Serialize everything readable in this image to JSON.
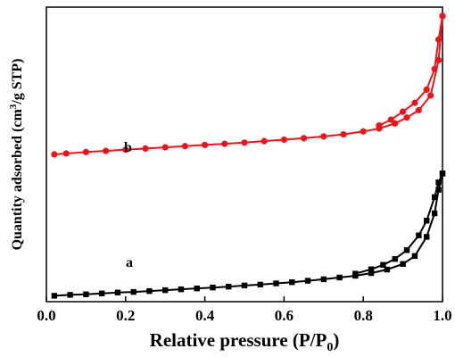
{
  "chart_data": {
    "type": "line",
    "title": "",
    "xlabel": "Relative pressure (P/P",
    "xlabel_sub": "0",
    "xlabel_end": ")",
    "ylabel_pre": "Quantity adsorbed (cm",
    "ylabel_sup": "3",
    "ylabel_post": "/g STP)",
    "xlim": [
      0.0,
      1.0
    ],
    "ylim": [
      0,
      100
    ],
    "y_ticks_shown": false,
    "grid": false,
    "x_ticks": [
      {
        "value": 0.0,
        "label": "0.0"
      },
      {
        "value": 0.2,
        "label": "0.2"
      },
      {
        "value": 0.4,
        "label": "0.4"
      },
      {
        "value": 0.6,
        "label": "0.6"
      },
      {
        "value": 0.8,
        "label": "0.8"
      },
      {
        "value": 1.0,
        "label": "1.0"
      }
    ],
    "series": [
      {
        "name": "a",
        "label": "a",
        "color": "#000000",
        "marker": "square",
        "adsorption": {
          "x": [
            0.02,
            0.06,
            0.1,
            0.14,
            0.18,
            0.22,
            0.26,
            0.3,
            0.34,
            0.38,
            0.42,
            0.46,
            0.5,
            0.54,
            0.58,
            0.62,
            0.66,
            0.7,
            0.74,
            0.78,
            0.82,
            0.86,
            0.9,
            0.93,
            0.96,
            0.98,
            0.99,
            1.0
          ],
          "y": [
            2.0,
            2.3,
            2.5,
            2.8,
            3.1,
            3.3,
            3.6,
            3.9,
            4.2,
            4.5,
            4.8,
            5.1,
            5.5,
            5.8,
            6.2,
            6.6,
            7.1,
            7.6,
            8.2,
            8.8,
            9.7,
            10.9,
            12.8,
            15.5,
            22.0,
            30.0,
            38.0,
            43.5
          ]
        },
        "desorption": {
          "x": [
            1.0,
            0.99,
            0.98,
            0.96,
            0.94,
            0.91,
            0.88,
            0.85,
            0.82,
            0.78
          ],
          "y": [
            43.5,
            40.5,
            35.5,
            27.5,
            22.5,
            17.5,
            14.5,
            12.5,
            11.0,
            9.5
          ]
        }
      },
      {
        "name": "b",
        "label": "b",
        "color": "#e8151b",
        "marker": "circle",
        "adsorption": {
          "x": [
            0.02,
            0.05,
            0.1,
            0.15,
            0.2,
            0.25,
            0.3,
            0.35,
            0.4,
            0.45,
            0.5,
            0.55,
            0.6,
            0.65,
            0.7,
            0.75,
            0.8,
            0.84,
            0.88,
            0.91,
            0.94,
            0.97,
            0.99,
            1.0
          ],
          "y": [
            50.0,
            50.3,
            50.8,
            51.2,
            51.6,
            52.0,
            52.4,
            52.8,
            53.2,
            53.6,
            54.0,
            54.5,
            55.0,
            55.5,
            56.1,
            56.8,
            57.8,
            58.8,
            60.5,
            62.5,
            65.0,
            70.0,
            82.0,
            97.0
          ]
        },
        "desorption": {
          "x": [
            1.0,
            0.99,
            0.98,
            0.96,
            0.93,
            0.9,
            0.87,
            0.84
          ],
          "y": [
            97.0,
            89.0,
            79.0,
            72.0,
            67.5,
            64.5,
            61.8,
            59.8
          ]
        }
      }
    ]
  }
}
